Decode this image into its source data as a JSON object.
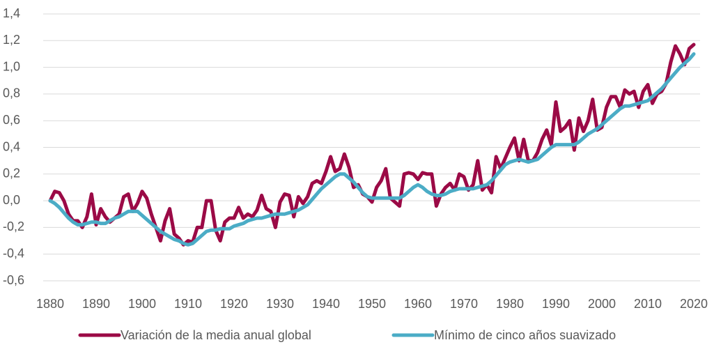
{
  "chart_data": {
    "type": "line",
    "x": [
      1880,
      1881,
      1882,
      1883,
      1884,
      1885,
      1886,
      1887,
      1888,
      1889,
      1890,
      1891,
      1892,
      1893,
      1894,
      1895,
      1896,
      1897,
      1898,
      1899,
      1900,
      1901,
      1902,
      1903,
      1904,
      1905,
      1906,
      1907,
      1908,
      1909,
      1910,
      1911,
      1912,
      1913,
      1914,
      1915,
      1916,
      1917,
      1918,
      1919,
      1920,
      1921,
      1922,
      1923,
      1924,
      1925,
      1926,
      1927,
      1928,
      1929,
      1930,
      1931,
      1932,
      1933,
      1934,
      1935,
      1936,
      1937,
      1938,
      1939,
      1940,
      1941,
      1942,
      1943,
      1944,
      1945,
      1946,
      1947,
      1948,
      1949,
      1950,
      1951,
      1952,
      1953,
      1954,
      1955,
      1956,
      1957,
      1958,
      1959,
      1960,
      1961,
      1962,
      1963,
      1964,
      1965,
      1966,
      1967,
      1968,
      1969,
      1970,
      1971,
      1972,
      1973,
      1974,
      1975,
      1976,
      1977,
      1978,
      1979,
      1980,
      1981,
      1982,
      1983,
      1984,
      1985,
      1986,
      1987,
      1988,
      1989,
      1990,
      1991,
      1992,
      1993,
      1994,
      1995,
      1996,
      1997,
      1998,
      1999,
      2000,
      2001,
      2002,
      2003,
      2004,
      2005,
      2006,
      2007,
      2008,
      2009,
      2010,
      2011,
      2012,
      2013,
      2014,
      2015,
      2016,
      2017,
      2018,
      2019,
      2020
    ],
    "series": [
      {
        "name": "Variación de la media anual global",
        "color": "#9b0a46",
        "values": [
          0.0,
          0.07,
          0.06,
          0.0,
          -0.1,
          -0.15,
          -0.15,
          -0.2,
          -0.12,
          0.05,
          -0.18,
          -0.06,
          -0.12,
          -0.16,
          -0.13,
          -0.1,
          0.03,
          0.05,
          -0.08,
          -0.02,
          0.07,
          0.02,
          -0.1,
          -0.2,
          -0.3,
          -0.15,
          -0.06,
          -0.25,
          -0.28,
          -0.33,
          -0.3,
          -0.31,
          -0.2,
          -0.2,
          0.0,
          0.0,
          -0.22,
          -0.3,
          -0.16,
          -0.13,
          -0.13,
          -0.05,
          -0.13,
          -0.1,
          -0.12,
          -0.07,
          0.04,
          -0.06,
          -0.08,
          -0.2,
          -0.01,
          0.05,
          0.04,
          -0.12,
          0.03,
          -0.02,
          0.03,
          0.13,
          0.15,
          0.13,
          0.22,
          0.33,
          0.22,
          0.24,
          0.35,
          0.25,
          0.1,
          0.12,
          0.05,
          0.03,
          -0.01,
          0.1,
          0.15,
          0.24,
          0.02,
          -0.01,
          -0.04,
          0.2,
          0.21,
          0.2,
          0.16,
          0.21,
          0.2,
          0.2,
          -0.04,
          0.05,
          0.1,
          0.13,
          0.08,
          0.2,
          0.18,
          0.08,
          0.12,
          0.3,
          0.08,
          0.12,
          0.06,
          0.33,
          0.24,
          0.32,
          0.4,
          0.47,
          0.3,
          0.46,
          0.3,
          0.3,
          0.36,
          0.46,
          0.53,
          0.42,
          0.74,
          0.52,
          0.55,
          0.6,
          0.38,
          0.62,
          0.52,
          0.6,
          0.76,
          0.53,
          0.55,
          0.7,
          0.78,
          0.78,
          0.7,
          0.83,
          0.8,
          0.82,
          0.7,
          0.82,
          0.87,
          0.73,
          0.8,
          0.82,
          0.88,
          1.04,
          1.16,
          1.1,
          1.02,
          1.14,
          1.17
        ]
      },
      {
        "name": "Mínimo de cinco años suavizado",
        "color": "#4bacc6",
        "values": [
          0.0,
          -0.02,
          -0.05,
          -0.09,
          -0.13,
          -0.16,
          -0.18,
          -0.18,
          -0.17,
          -0.16,
          -0.16,
          -0.17,
          -0.17,
          -0.15,
          -0.13,
          -0.12,
          -0.1,
          -0.08,
          -0.08,
          -0.08,
          -0.11,
          -0.14,
          -0.17,
          -0.2,
          -0.23,
          -0.25,
          -0.27,
          -0.29,
          -0.3,
          -0.32,
          -0.33,
          -0.32,
          -0.29,
          -0.26,
          -0.23,
          -0.22,
          -0.22,
          -0.21,
          -0.21,
          -0.21,
          -0.19,
          -0.18,
          -0.17,
          -0.15,
          -0.14,
          -0.13,
          -0.13,
          -0.12,
          -0.11,
          -0.1,
          -0.1,
          -0.1,
          -0.09,
          -0.08,
          -0.07,
          -0.05,
          -0.03,
          0.01,
          0.05,
          0.09,
          0.12,
          0.15,
          0.18,
          0.2,
          0.2,
          0.17,
          0.14,
          0.1,
          0.06,
          0.03,
          0.02,
          0.02,
          0.02,
          0.02,
          0.02,
          0.02,
          0.02,
          0.04,
          0.07,
          0.1,
          0.12,
          0.1,
          0.07,
          0.05,
          0.04,
          0.04,
          0.05,
          0.07,
          0.08,
          0.09,
          0.09,
          0.09,
          0.09,
          0.1,
          0.11,
          0.12,
          0.15,
          0.19,
          0.23,
          0.27,
          0.29,
          0.3,
          0.31,
          0.3,
          0.29,
          0.3,
          0.31,
          0.34,
          0.37,
          0.4,
          0.42,
          0.42,
          0.42,
          0.42,
          0.42,
          0.44,
          0.47,
          0.5,
          0.52,
          0.54,
          0.57,
          0.6,
          0.63,
          0.66,
          0.69,
          0.71,
          0.71,
          0.72,
          0.73,
          0.74,
          0.75,
          0.78,
          0.81,
          0.84,
          0.88,
          0.92,
          0.96,
          1.0,
          1.03,
          1.06,
          1.1
        ]
      }
    ],
    "xlim": [
      1880,
      2020
    ],
    "xticks": [
      1880,
      1890,
      1900,
      1910,
      1920,
      1930,
      1940,
      1950,
      1960,
      1970,
      1980,
      1990,
      2000,
      2010,
      2020
    ],
    "ylim": [
      -0.6,
      1.4
    ],
    "yticks": [
      {
        "value": -0.6,
        "label": "-0,6"
      },
      {
        "value": -0.4,
        "label": "-0,4"
      },
      {
        "value": -0.2,
        "label": "-0,2"
      },
      {
        "value": 0,
        "label": "0,0"
      },
      {
        "value": 0.2,
        "label": "0,2"
      },
      {
        "value": 0.4,
        "label": "0,4"
      },
      {
        "value": 0.6,
        "label": "0,6"
      },
      {
        "value": 0.8,
        "label": "0,8"
      },
      {
        "value": 1.0,
        "label": "1,0"
      },
      {
        "value": 1.2,
        "label": "1,2"
      },
      {
        "value": 1.4,
        "label": "1,4"
      }
    ],
    "grid": true,
    "legend": "bottom"
  }
}
